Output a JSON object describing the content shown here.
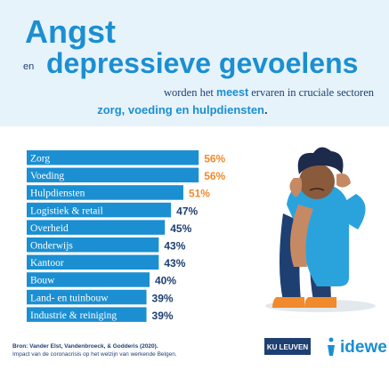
{
  "chart_data": {
    "type": "bar",
    "orientation": "horizontal",
    "title_line1": "Angst",
    "title_connector": "en",
    "title_line2": "depressieve gevoelens",
    "subtitle_line1": [
      "worden het ",
      "meest",
      " ervaren in cruciale sectoren"
    ],
    "subtitle_line2": [
      "zorg, voeding en hulpdiensten",
      "."
    ],
    "categories": [
      "Zorg",
      "Voeding",
      "Hulpdiensten",
      "Logistiek & retail",
      "Overheid",
      "Onderwijs",
      "Kantoor",
      "Bouw",
      "Land- en tuinbouw",
      "Industrie & reiniging"
    ],
    "values": [
      56,
      56,
      51,
      47,
      45,
      43,
      43,
      40,
      39,
      39
    ],
    "value_labels": [
      "56%",
      "56%",
      "51%",
      "47%",
      "45%",
      "43%",
      "43%",
      "40%",
      "39%",
      "39%"
    ],
    "value_label_colors": [
      "#f08a2c",
      "#f08a2c",
      "#f08a2c",
      "#1d3f72",
      "#1d3f72",
      "#1d3f72",
      "#1d3f72",
      "#1d3f72",
      "#1d3f72",
      "#1d3f72"
    ],
    "color": "#1b8fd2",
    "source": [
      "Bron: Vander Elst, Vandenbroeck, & Godderis (2020).",
      "Impact van de coronacrisis op het welzijn van werkende Belgen."
    ],
    "logos": [
      "KU LEUVEN",
      "idewe"
    ]
  }
}
